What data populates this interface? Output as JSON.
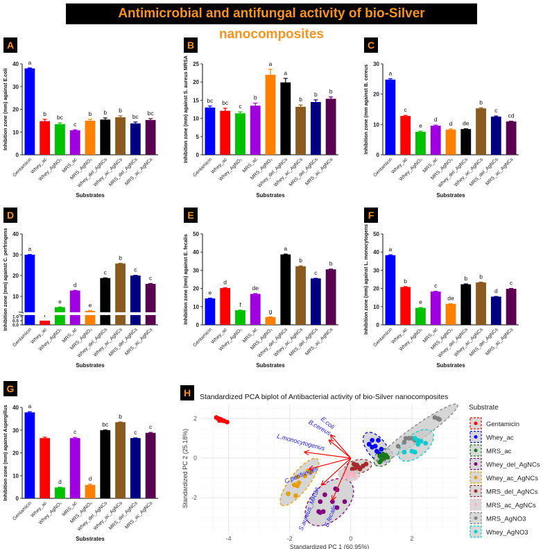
{
  "title": "Antimicrobial and antifungal activity of bio-Silver nanocomposites",
  "chart_data": [
    {
      "type": "bar",
      "panel": "A",
      "ylabel": "Inhibition zone (mm) against E.coli",
      "xlabel": "Substrates",
      "ylim": [
        0,
        40
      ],
      "yticks": [
        0,
        10,
        20,
        30,
        40
      ],
      "categories": [
        "Gentamicin",
        "Whey_ac",
        "Whey_AgNO₃",
        "MRS_ac",
        "MRS_AgNO₃",
        "Whey_del_AgNCs",
        "Whey_ac_AgNCs",
        "MRS_del_AgNCs",
        "MRS_ac_AgNCs"
      ],
      "values": [
        38,
        14.8,
        13.5,
        10.8,
        15,
        15.5,
        16.5,
        13.8,
        15.3
      ],
      "errors": [
        0.2,
        0.8,
        0.5,
        0.2,
        0.6,
        0.7,
        0.6,
        0.6,
        0.6
      ],
      "letters": [
        "a",
        "b",
        "bc",
        "c",
        "b",
        "b",
        "b",
        "bc",
        "bc"
      ]
    },
    {
      "type": "bar",
      "panel": "B",
      "ylabel": "Inhibition zone (mm) against S. aureus MRSA",
      "xlabel": "Substrates",
      "ylim": [
        0,
        25
      ],
      "yticks": [
        0,
        5,
        10,
        15,
        20,
        25
      ],
      "categories": [
        "Gentamicin",
        "Whey_ac",
        "Whey_AgNO₃",
        "MRS_ac",
        "MRS_AgNO₃",
        "Whey_del_AgNCs",
        "Whey_ac_AgNCs",
        "MRS_del_AgNCs",
        "MRS_ac_AgNCs"
      ],
      "values": [
        13,
        12.1,
        11.4,
        13.5,
        22,
        19.9,
        13.2,
        14.5,
        15.4
      ],
      "errors": [
        0.4,
        0.7,
        0.4,
        0.7,
        1.5,
        1.1,
        0.5,
        0.6,
        0.5
      ],
      "letters": [
        "bc",
        "bc",
        "c",
        "b",
        "a",
        "a",
        "b",
        "b",
        "b"
      ]
    },
    {
      "type": "bar",
      "panel": "C",
      "ylabel": "Inhibition zone (mm against B. cereus",
      "xlabel": "Substrates",
      "ylim": [
        0,
        30
      ],
      "yticks": [
        0,
        10,
        20,
        30
      ],
      "categories": [
        "Gentamicin",
        "Whey_ac",
        "Whey_AgNO₃",
        "MRS_ac",
        "MRS_AgNO₃",
        "Whey_del_AgNCs",
        "Whey_ac_AgNCs",
        "MRS_del_AgNCs",
        "MRS_ac_AgNCs"
      ],
      "values": [
        24.8,
        12.8,
        7.6,
        9.6,
        8.3,
        8.5,
        15.3,
        12.6,
        11.0
      ],
      "errors": [
        0.3,
        0.2,
        0.2,
        0.2,
        0.2,
        0.1,
        0.2,
        0.2,
        0.1
      ],
      "letters": [
        "a",
        "c",
        "e",
        "d",
        "d",
        "de",
        "b",
        "c",
        "cd"
      ]
    },
    {
      "type": "bar",
      "panel": "D",
      "ylabel": "Inhibition zone (mm) against C. perfringens",
      "xlabel": "Substrates",
      "ylim": [
        0,
        40
      ],
      "yticks": [
        10,
        20,
        30,
        40
      ],
      "yticks_lower": [
        "0.0",
        "0.5",
        "1.0"
      ],
      "axis_break": [
        1,
        2.5
      ],
      "categories": [
        "Gentamicin",
        "Whey_ac",
        "Whey_AgNO₃",
        "MRS_ac",
        "MRS_AgNO₃",
        "Whey_del_AgNCs",
        "Whey_ac_AgNCs",
        "MRS_del_AgNCs",
        "MRS_ac_AgNCs"
      ],
      "values": [
        30,
        0.5,
        4.8,
        12.8,
        3.0,
        18.8,
        25.8,
        20,
        16
      ],
      "errors": [
        0.1,
        0,
        0.1,
        0.1,
        0.1,
        0.1,
        0.1,
        0.1,
        0.2
      ],
      "letters": [
        "a",
        "f",
        "e",
        "d",
        "e",
        "c",
        "b",
        "c",
        "c"
      ]
    },
    {
      "type": "bar",
      "panel": "E",
      "ylabel": "Inhibition zone (mm) against E. fecalis",
      "xlabel": "Substrates",
      "ylim": [
        0,
        50
      ],
      "yticks": [
        0,
        10,
        20,
        30,
        40,
        50
      ],
      "categories": [
        "Gentamicin",
        "Whey_ac",
        "Whey_AgNO₃",
        "MRS_ac",
        "MRS_AgNO₃",
        "Whey_del_AgNCs",
        "Whey_ac_AgNCs",
        "MRS_del_AgNCs",
        "MRS_ac_AgNCs"
      ],
      "values": [
        14.5,
        20.2,
        8,
        17,
        4.3,
        38.7,
        32.2,
        25.5,
        30.5
      ],
      "errors": [
        0.2,
        0.2,
        0.1,
        0.2,
        0.1,
        0.2,
        0.2,
        0.1,
        0.2
      ],
      "letters": [
        "e",
        "d",
        "f",
        "de",
        "g",
        "a",
        "b",
        "c",
        "b"
      ]
    },
    {
      "type": "bar",
      "panel": "F",
      "ylabel": "Inhibition zone (mm) against L. monocytogens",
      "xlabel": "Substrates",
      "ylim": [
        0,
        50
      ],
      "yticks": [
        0,
        10,
        20,
        30,
        40,
        50
      ],
      "categories": [
        "Gentamicin",
        "Whey_ac",
        "Whey_AgNO₃",
        "MRS_ac",
        "MRS_AgNO₃",
        "Whey_del_AgNCs",
        "Whey_ac_AgNCs",
        "MRS_del_AgNCs",
        "MRS_ac_AgNCs"
      ],
      "values": [
        38.3,
        20.8,
        9.3,
        18.3,
        11.5,
        22.3,
        23.3,
        15.5,
        19.8
      ],
      "errors": [
        0.2,
        0.2,
        0.2,
        0.2,
        0.1,
        0.2,
        0.2,
        0.1,
        0.2
      ],
      "letters": [
        "a",
        "b",
        "e",
        "c",
        "de",
        "b",
        "b",
        "d",
        "c"
      ]
    },
    {
      "type": "bar",
      "panel": "G",
      "ylabel": "Inhibition zone (mm) against Aspergillus",
      "xlabel": "Substrates",
      "ylim": [
        0,
        40
      ],
      "yticks": [
        0,
        10,
        20,
        30,
        40
      ],
      "categories": [
        "Gentamicin",
        "Whey_ac",
        "Whey_AgNO₃",
        "MRS_ac",
        "MRS_AgNO₃",
        "Whey_del_AgNCs",
        "Whey_ac_AgNCs",
        "MRS_del_AgNCs",
        "MRS_ac_AgNCs"
      ],
      "values": [
        37.8,
        26.5,
        4.8,
        26.5,
        5.9,
        30,
        33.5,
        26.5,
        28.8
      ],
      "errors": [
        0.3,
        0.4,
        0.1,
        0.3,
        0.3,
        0.1,
        0.1,
        0.1,
        0.2
      ],
      "letters": [
        "a",
        "",
        "d",
        "c",
        "d",
        "bc",
        "b",
        "c",
        "c"
      ]
    },
    {
      "type": "scatter",
      "panel": "H",
      "title": "Standardized PCA biplot of Antibacterial activity of bio-Silver nanocomposites",
      "xlabel": "Standardized PC 1 (60.95%)",
      "ylabel": "Standardized PC 2 (25.18%)",
      "xlim": [
        -4.9,
        3.5
      ],
      "ylim": [
        -3.75,
        2.7
      ],
      "xticks": [
        -4,
        -2,
        0,
        2
      ],
      "yticks": [
        -2,
        0,
        2
      ],
      "grid": true,
      "legend_title": "Substrate",
      "legend_position": "right",
      "groups": [
        {
          "name": "Gentamicin",
          "color": "#ff0000",
          "ellipse": false,
          "points": [
            [
              -4.4,
              2.05
            ],
            [
              -4.35,
              2.0
            ],
            [
              -4.3,
              1.98
            ],
            [
              -4.25,
              1.95
            ],
            [
              -4.2,
              1.9
            ],
            [
              -4.15,
              1.88
            ],
            [
              -4.05,
              1.82
            ],
            [
              -4.3,
              1.9
            ]
          ]
        },
        {
          "name": "Whey_ac",
          "color": "#0000ff",
          "ellipse": true,
          "points": [
            [
              0.6,
              0.7
            ],
            [
              0.7,
              0.9
            ],
            [
              0.9,
              0.9
            ],
            [
              0.7,
              0.55
            ],
            [
              0.85,
              0.35
            ],
            [
              0.95,
              0.2
            ],
            [
              1.0,
              0.45
            ],
            [
              1.05,
              0.15
            ],
            [
              0.8,
              0.6
            ]
          ]
        },
        {
          "name": "MRS_ac",
          "color": "#1a7a1a",
          "ellipse": true,
          "points": [
            [
              0.95,
              0.1
            ],
            [
              1.05,
              0.2
            ],
            [
              1.1,
              0.0
            ],
            [
              1.0,
              -0.1
            ],
            [
              1.15,
              0.15
            ],
            [
              0.95,
              -0.2
            ],
            [
              1.2,
              0.05
            ]
          ]
        },
        {
          "name": "Whey_del_AgNCs",
          "color": "#800080",
          "ellipse": true,
          "points": [
            [
              -0.5,
              -1.55
            ],
            [
              -0.45,
              -1.6
            ],
            [
              -0.85,
              -1.85
            ],
            [
              -1.0,
              -2.2
            ],
            [
              -0.6,
              -2.2
            ],
            [
              -0.2,
              -2.2
            ],
            [
              -1.05,
              -2.7
            ],
            [
              -1.0,
              -2.75
            ],
            [
              -0.9,
              -2.7
            ],
            [
              -0.45,
              -2.5
            ]
          ]
        },
        {
          "name": "Whey_ac_AgNCs",
          "color": "#e69f00",
          "ellipse": true,
          "points": [
            [
              -1.4,
              -0.65
            ],
            [
              -1.3,
              -0.7
            ],
            [
              -1.5,
              -0.9
            ],
            [
              -1.75,
              -0.95
            ],
            [
              -1.7,
              -1.25
            ],
            [
              -1.85,
              -1.35
            ],
            [
              -1.75,
              -1.4
            ],
            [
              -2.05,
              -1.8
            ],
            [
              -1.8,
              -1.9
            ]
          ]
        },
        {
          "name": "MRS_del_AgNCs",
          "color": "#a52a2a",
          "ellipse": true,
          "points": [
            [
              0.1,
              -0.3
            ],
            [
              0.2,
              -0.35
            ],
            [
              0.4,
              -0.4
            ],
            [
              0.25,
              -0.45
            ],
            [
              0.15,
              -0.5
            ],
            [
              0.05,
              -0.55
            ],
            [
              0.3,
              -0.55
            ],
            [
              0.5,
              -0.3
            ]
          ]
        },
        {
          "name": "MRS_ac_AgNCs",
          "color": "#f4b6c2",
          "ellipse": true,
          "points": [
            [
              -0.15,
              -0.7
            ],
            [
              -0.05,
              -0.8
            ],
            [
              0.05,
              -0.75
            ],
            [
              -0.1,
              -0.95
            ],
            [
              0.1,
              -0.9
            ],
            [
              -0.2,
              -0.85
            ]
          ]
        },
        {
          "name": "MRS_AgNO3",
          "color": "#808080",
          "ellipse": true,
          "points": [
            [
              1.55,
              0.6
            ],
            [
              1.8,
              1.0
            ],
            [
              1.9,
              1.0
            ],
            [
              2.0,
              1.0
            ],
            [
              2.1,
              0.9
            ],
            [
              1.75,
              0.8
            ],
            [
              2.75,
              2.05
            ],
            [
              2.85,
              2.0
            ],
            [
              2.9,
              1.95
            ]
          ]
        },
        {
          "name": "Whey_AgNO3",
          "color": "#00ced1",
          "ellipse": true,
          "points": [
            [
              2.1,
              1.0
            ],
            [
              2.2,
              0.9
            ],
            [
              2.3,
              0.85
            ],
            [
              2.45,
              0.75
            ],
            [
              2.2,
              0.7
            ],
            [
              2.0,
              0.35
            ],
            [
              2.1,
              0.3
            ],
            [
              1.75,
              0.3
            ]
          ]
        }
      ],
      "loadings": [
        {
          "name": "E.coli",
          "x": -0.65,
          "y": 1.15,
          "lx": -0.8,
          "ly": 1.7,
          "rot": 40
        },
        {
          "name": "B.cereus",
          "x": -0.7,
          "y": 0.9,
          "lx": -1.05,
          "ly": 1.45,
          "rot": 30
        },
        {
          "name": "L.monocytogenus",
          "x": -1.5,
          "y": 0.3,
          "lx": -1.65,
          "ly": 0.7,
          "rot": 15
        },
        {
          "name": "C.perifringes",
          "x": -1.35,
          "y": -0.55,
          "lx": -1.6,
          "ly": -0.95,
          "rot": -22
        },
        {
          "name": "S.aureus_MRSA",
          "x": -0.95,
          "y": -1.35,
          "lx": -1.3,
          "ly": -2.6,
          "rot": -68
        },
        {
          "name": "E.fecalis",
          "x": -0.6,
          "y": -2.1,
          "lx": -0.6,
          "ly": -2.95,
          "rot": -68
        }
      ]
    }
  ],
  "colors": {
    "bars": [
      "#0000ff",
      "#ff0000",
      "#00c000",
      "#a000e0",
      "#ff8000",
      "#000000",
      "#8b5a1e",
      "#000080",
      "#5a0050"
    ],
    "banner_text": "#f7931e",
    "loading": "#ff0000",
    "loading_label": "#1a1aff"
  }
}
